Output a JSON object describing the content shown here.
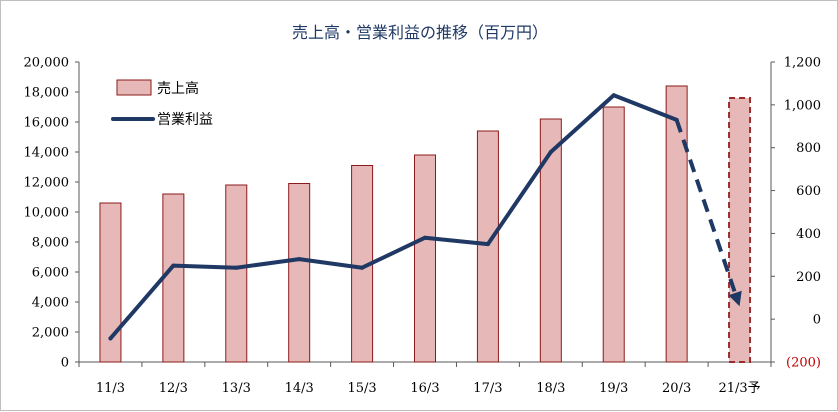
{
  "chart_data": {
    "type": "bar+line",
    "title": "売上高・営業利益の推移（百万円）",
    "categories": [
      "11/3",
      "12/3",
      "13/3",
      "14/3",
      "15/3",
      "16/3",
      "17/3",
      "18/3",
      "19/3",
      "20/3",
      "21/3予"
    ],
    "series": [
      {
        "name": "売上高",
        "kind": "bar",
        "axis": "left",
        "color": "#e6b9b8",
        "edge_color": "#8b1a1a",
        "values": [
          10600,
          11200,
          11800,
          11900,
          13100,
          13800,
          15400,
          16200,
          17000,
          18400,
          17600
        ],
        "forecast_index": 10
      },
      {
        "name": "営業利益",
        "kind": "line",
        "axis": "right",
        "color": "#1f3864",
        "values": [
          -90,
          250,
          240,
          280,
          240,
          380,
          350,
          780,
          1045,
          930,
          60
        ],
        "forecast_index": 10
      }
    ],
    "left_axis": {
      "ylim": [
        0,
        20000
      ],
      "ticks": [
        0,
        2000,
        4000,
        6000,
        8000,
        10000,
        12000,
        14000,
        16000,
        18000,
        20000
      ],
      "tick_labels": [
        "0",
        "2,000",
        "4,000",
        "6,000",
        "8,000",
        "10,000",
        "12,000",
        "14,000",
        "16,000",
        "18,000",
        "20,000"
      ]
    },
    "right_axis": {
      "ylim": [
        -200,
        1200
      ],
      "ticks": [
        -200,
        0,
        200,
        400,
        600,
        800,
        1000,
        1200
      ],
      "tick_labels": [
        "(200)",
        "0",
        "200",
        "400",
        "600",
        "800",
        "1,000",
        "1,200"
      ]
    },
    "legend": {
      "position": "top-left",
      "items": [
        "売上高",
        "営業利益"
      ]
    },
    "grid": false
  }
}
